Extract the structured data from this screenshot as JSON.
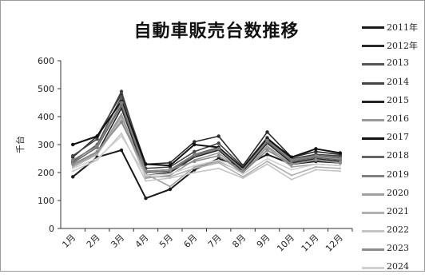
{
  "chart_data": {
    "type": "line",
    "title": "自動車販売台数推移",
    "ylabel": "千台",
    "xlabel": "",
    "ylim": [
      0,
      600
    ],
    "yticks": [
      "0",
      "100",
      "200",
      "300",
      "400",
      "500",
      "600"
    ],
    "categories": [
      "1月",
      "2月",
      "3月",
      "4月",
      "5月",
      "6月",
      "7月",
      "8月",
      "9月",
      "10月",
      "11月",
      "12月"
    ],
    "legend_position": "right",
    "grid": false,
    "series": [
      {
        "name": "2011年",
        "color": "#1a1a1a",
        "values": [
          185,
          255,
          280,
          108,
          140,
          210,
          250,
          220,
          265,
          230,
          240,
          235
        ]
      },
      {
        "name": "2012年",
        "color": "#2b2b2b",
        "values": [
          255,
          330,
          480,
          230,
          235,
          310,
          330,
          225,
          345,
          255,
          275,
          265
        ]
      },
      {
        "name": "2013",
        "color": "#555555",
        "values": [
          240,
          300,
          470,
          205,
          210,
          265,
          290,
          215,
          320,
          245,
          260,
          255
        ]
      },
      {
        "name": "2014",
        "color": "#444444",
        "values": [
          260,
          320,
          490,
          215,
          220,
          275,
          305,
          220,
          325,
          250,
          265,
          260
        ]
      },
      {
        "name": "2015",
        "color": "#222222",
        "values": [
          225,
          270,
          430,
          190,
          200,
          255,
          280,
          205,
          305,
          235,
          250,
          240
        ]
      },
      {
        "name": "2016",
        "color": "#999999",
        "values": [
          220,
          265,
          410,
          180,
          190,
          245,
          270,
          200,
          295,
          230,
          245,
          235
        ]
      },
      {
        "name": "2017",
        "color": "#111111",
        "values": [
          300,
          330,
          455,
          230,
          225,
          300,
          290,
          215,
          320,
          255,
          285,
          270
        ]
      },
      {
        "name": "2018",
        "color": "#666666",
        "values": [
          235,
          290,
          440,
          200,
          205,
          260,
          285,
          210,
          310,
          240,
          255,
          245
        ]
      },
      {
        "name": "2019",
        "color": "#808080",
        "values": [
          245,
          295,
          450,
          205,
          210,
          265,
          285,
          210,
          315,
          245,
          260,
          250
        ]
      },
      {
        "name": "2020",
        "color": "#a0a0a0",
        "values": [
          225,
          270,
          400,
          195,
          150,
          220,
          240,
          200,
          290,
          220,
          230,
          225
        ]
      },
      {
        "name": "2021",
        "color": "#b0b0b0",
        "values": [
          220,
          265,
          390,
          185,
          185,
          215,
          235,
          185,
          240,
          190,
          220,
          215
        ]
      },
      {
        "name": "2022",
        "color": "#c4c4c4",
        "values": [
          205,
          245,
          340,
          170,
          180,
          200,
          215,
          180,
          230,
          175,
          210,
          205
        ]
      },
      {
        "name": "2023",
        "color": "#8c8c8c",
        "values": [
          230,
          275,
          380,
          205,
          210,
          240,
          260,
          200,
          280,
          230,
          245,
          235
        ]
      },
      {
        "name": "2024",
        "color": "#d0d0d0",
        "values": [
          215,
          250,
          330,
          190,
          195,
          225,
          245,
          195,
          250,
          210,
          230,
          225
        ]
      }
    ]
  }
}
